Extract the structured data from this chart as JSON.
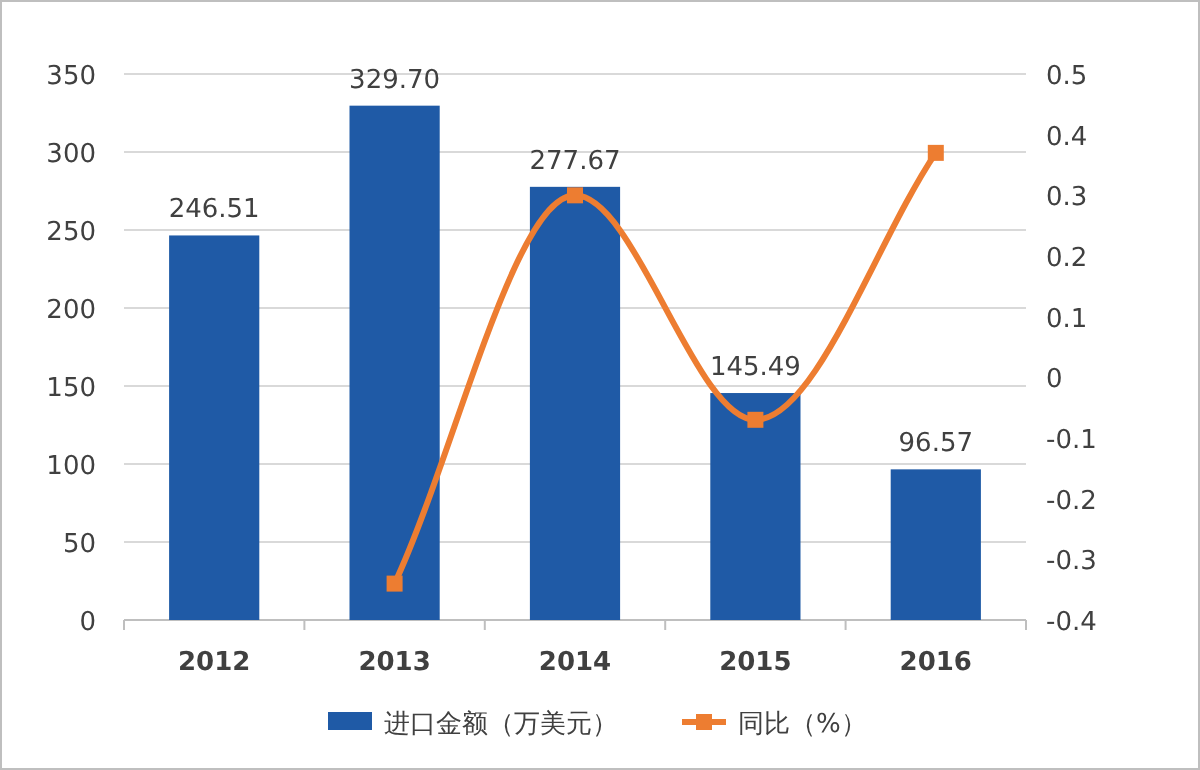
{
  "chart_data": {
    "type": "bar",
    "categories": [
      "2012",
      "2013",
      "2014",
      "2015",
      "2016"
    ],
    "series": [
      {
        "name": "进口金额（万美元）",
        "color": "#1f5aa6",
        "values": [
          246.51,
          329.7,
          277.67,
          145.49,
          96.57
        ],
        "value_labels": [
          "246.51",
          "329.70",
          "277.67",
          "145.49",
          "96.57"
        ]
      },
      {
        "name": "同比（%）",
        "type": "line",
        "axis": "y2",
        "color": "#ed7d31",
        "values": [
          null,
          -0.34,
          0.3,
          -0.07,
          0.37
        ]
      }
    ],
    "ylim": [
      0,
      350
    ],
    "yticks": [
      0,
      50,
      100,
      150,
      200,
      250,
      300,
      350
    ],
    "y2lim": [
      -0.4,
      0.5
    ],
    "y2ticks": [
      -0.4,
      -0.3,
      -0.2,
      -0.1,
      0,
      0.1,
      0.2,
      0.3,
      0.4,
      0.5
    ],
    "grid": "y",
    "legend": "bottom",
    "marker": "square"
  }
}
